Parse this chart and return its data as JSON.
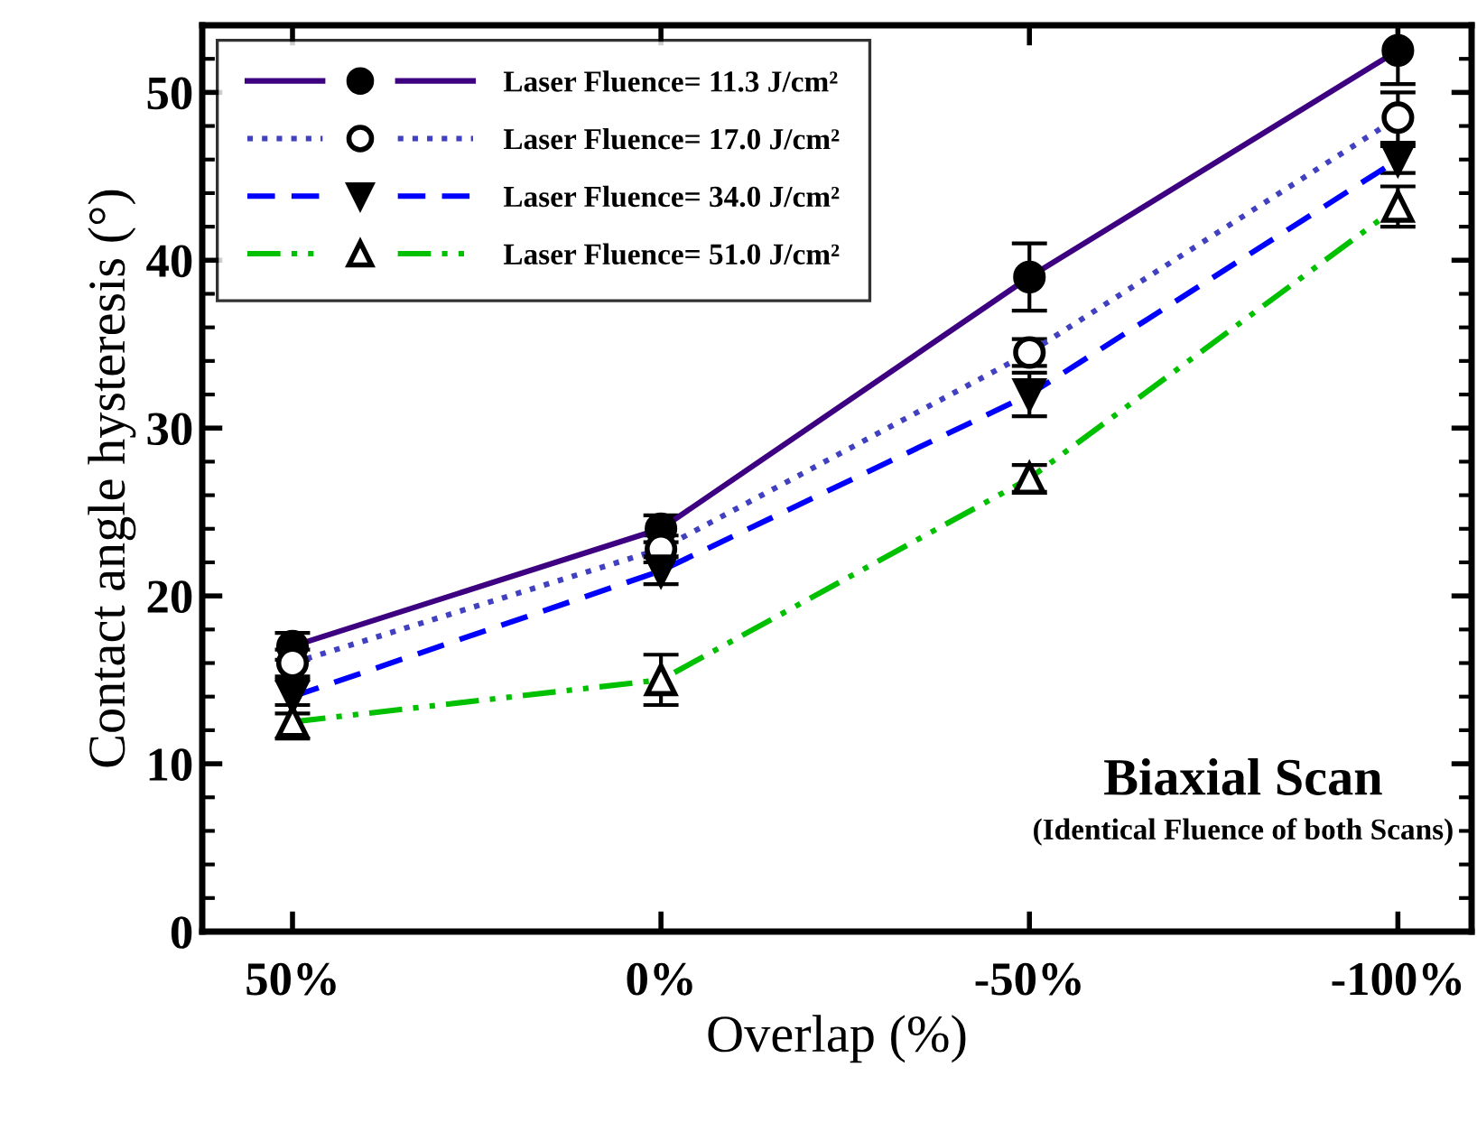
{
  "chart_data": {
    "type": "line",
    "xlabel": "Overlap (%)",
    "ylabel": "Contact angle hysteresis (°)",
    "categories": [
      "50%",
      "0%",
      "-50%",
      "-100%"
    ],
    "ylim": [
      0,
      54
    ],
    "yticks": [
      0,
      10,
      20,
      30,
      40,
      50
    ],
    "grid": false,
    "legend": "top left",
    "series": [
      {
        "name": "Laser Fluence= 11.3 J/cm²",
        "color": "#3d0080",
        "marker": "circle",
        "line_style": "solid",
        "values": [
          17.0,
          24.0,
          39.0,
          52.5
        ],
        "errors": [
          0.8,
          0.8,
          2.0,
          2.0
        ]
      },
      {
        "name": "Laser Fluence= 17.0 J/cm²",
        "color": "#4040c0",
        "marker": "circle_open",
        "line_style": "dotted",
        "values": [
          16.0,
          22.8,
          34.5,
          48.5
        ],
        "errors": [
          0.8,
          0.8,
          0.8,
          1.5
        ]
      },
      {
        "name": "Laser Fluence= 34.0 J/cm²",
        "color": "#0000ff",
        "marker": "triangle_down",
        "line_style": "dashed",
        "values": [
          14.0,
          21.5,
          32.0,
          46.0
        ],
        "errors": [
          1.0,
          0.8,
          1.3,
          0.8
        ]
      },
      {
        "name": "Laser Fluence= 51.0 J/cm²",
        "color": "#00c000",
        "marker": "triangle_open",
        "line_style": "dashdot",
        "values": [
          12.5,
          15.0,
          27.0,
          43.2
        ],
        "errors": [
          1.0,
          1.5,
          0.8,
          1.2
        ]
      }
    ],
    "annotations": [
      "Biaxial Scan",
      "(Identical Fluence of both Scans)"
    ]
  }
}
